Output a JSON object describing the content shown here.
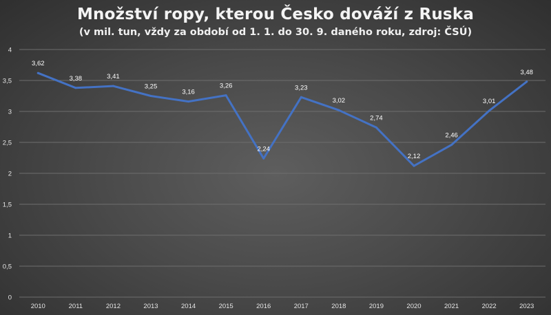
{
  "chart_data": {
    "type": "line",
    "title": "Množství ropy, kterou Česko dováží z Ruska",
    "subtitle": "(v mil. tun, vždy za období od 1. 1. do 30. 9. daného roku, zdroj: ČSÚ)",
    "xlabel": "",
    "ylabel": "",
    "categories": [
      "2010",
      "2011",
      "2012",
      "2013",
      "2014",
      "2015",
      "2016",
      "2017",
      "2018",
      "2019",
      "2020",
      "2021",
      "2022",
      "2023"
    ],
    "series": [
      {
        "values": [
          3.62,
          3.38,
          3.41,
          3.25,
          3.16,
          3.26,
          2.24,
          3.23,
          3.02,
          2.74,
          2.12,
          2.46,
          3.01,
          3.48
        ],
        "labels": [
          "3,62",
          "3,38",
          "3,41",
          "3,25",
          "3,16",
          "3,26",
          "2,24",
          "3,23",
          "3,02",
          "2,74",
          "2,12",
          "2,46",
          "3,01",
          "3,48"
        ],
        "color": "#4472c4"
      }
    ],
    "ylim": [
      0,
      4
    ],
    "yticks": [
      0,
      0.5,
      1,
      1.5,
      2,
      2.5,
      3,
      3.5,
      4
    ],
    "ytick_labels": [
      "0",
      "0,5",
      "1",
      "1,5",
      "2",
      "2,5",
      "3",
      "3,5",
      "4"
    ],
    "grid": true,
    "gridline_color": "#6e6e6e",
    "legend": "none"
  }
}
